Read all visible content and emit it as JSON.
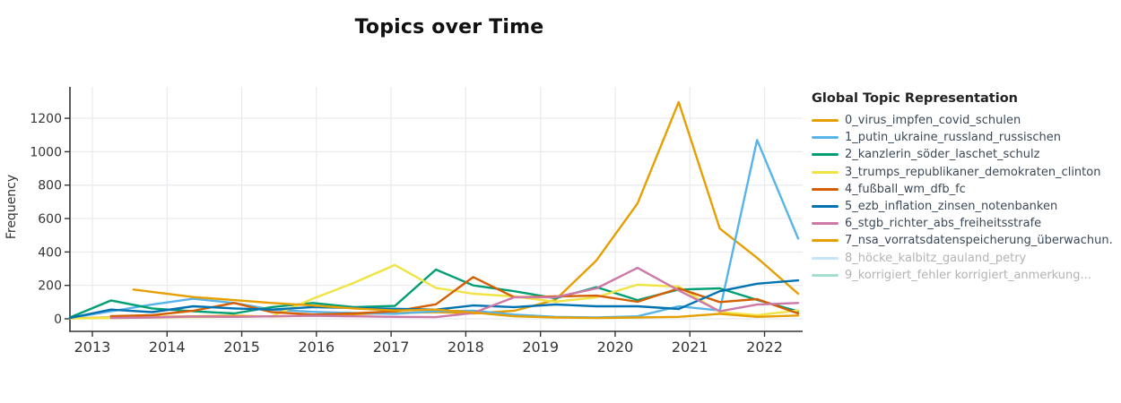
{
  "title": "Topics over Time",
  "chart_data": {
    "type": "line",
    "title": "Topics over Time",
    "xlabel": "",
    "ylabel": "Frequency",
    "legend_title": "Global Topic Representation",
    "legend_position": "right",
    "grid": true,
    "x_ticks": [
      2013,
      2014,
      2015,
      2016,
      2017,
      2018,
      2019,
      2020,
      2021,
      2022
    ],
    "y_ticks": [
      0,
      200,
      400,
      600,
      800,
      1000,
      1200
    ],
    "xlim": [
      2012.7,
      2022.51
    ],
    "ylim": [
      -75,
      1388
    ],
    "colors": {
      "accent_orange": "#E69F00",
      "light_blue": "#56B4E9",
      "teal_green": "#009E73",
      "yellow": "#F0E442",
      "vermillion": "#D55E00",
      "dark_blue": "#0072B2",
      "pink": "#CC79A7",
      "grid_gray": "#e8eaed",
      "axis_dark": "#333333",
      "dim_text": "#b3b3b3"
    },
    "series": [
      {
        "name": "0_virus_impfen_covid_schulen",
        "color": "#E69F00",
        "visible": true,
        "x": [
          2012.7,
          2013.25,
          2013.8,
          2014.35,
          2014.9,
          2015.4,
          2015.95,
          2016.5,
          2017.05,
          2017.6,
          2018.1,
          2018.65,
          2019.2,
          2019.75,
          2020.3,
          2020.85,
          2021.4,
          2021.9,
          2022.45
        ],
        "y": [
          3,
          8,
          12,
          15,
          18,
          14,
          20,
          28,
          35,
          40,
          32,
          48,
          113,
          350,
          690,
          1297,
          540,
          365,
          150
        ]
      },
      {
        "name": "1_putin_ukraine_russland_russischen",
        "color": "#56B4E9",
        "visible": true,
        "x": [
          2012.7,
          2013.25,
          2013.8,
          2014.35,
          2014.9,
          2015.4,
          2015.95,
          2016.5,
          2017.05,
          2017.6,
          2018.1,
          2018.65,
          2019.2,
          2019.75,
          2020.3,
          2020.85,
          2021.4,
          2021.9,
          2022.45
        ],
        "y": [
          5,
          45,
          85,
          120,
          95,
          55,
          42,
          35,
          30,
          45,
          48,
          25,
          12,
          8,
          15,
          75,
          50,
          1070,
          480
        ]
      },
      {
        "name": "2_kanzlerin_söder_laschet_schulz",
        "color": "#009E73",
        "visible": true,
        "x": [
          2012.7,
          2013.25,
          2013.8,
          2014.35,
          2014.9,
          2015.4,
          2015.95,
          2016.5,
          2017.05,
          2017.6,
          2018.1,
          2018.65,
          2019.2,
          2019.75,
          2020.3,
          2020.85,
          2021.4,
          2021.9,
          2022.45
        ],
        "y": [
          8,
          110,
          62,
          45,
          32,
          70,
          95,
          70,
          77,
          295,
          200,
          165,
          123,
          190,
          112,
          175,
          182,
          113,
          45
        ]
      },
      {
        "name": "3_trumps_republikaner_demokraten_clinton",
        "color": "#F0E442",
        "visible": true,
        "x": [
          2012.7,
          2013.25,
          2013.8,
          2014.35,
          2014.9,
          2015.4,
          2015.95,
          2016.5,
          2017.05,
          2017.6,
          2018.1,
          2018.65,
          2019.2,
          2019.75,
          2020.3,
          2020.85,
          2021.4,
          2021.9,
          2022.45
        ],
        "y": [
          2,
          5,
          8,
          10,
          12,
          15,
          120,
          215,
          322,
          185,
          150,
          134,
          102,
          129,
          204,
          193,
          40,
          22,
          50
        ]
      },
      {
        "name": "4_fußball_wm_dfb_fc",
        "color": "#D55E00",
        "visible": true,
        "x": [
          2013.25,
          2013.8,
          2014.35,
          2014.9,
          2015.4,
          2015.95,
          2016.5,
          2017.05,
          2017.6,
          2018.1,
          2018.65,
          2019.2,
          2019.75,
          2020.3,
          2020.85,
          2021.4,
          2021.9,
          2022.45
        ],
        "y": [
          16,
          22,
          48,
          95,
          40,
          26,
          32,
          45,
          87,
          250,
          129,
          134,
          139,
          102,
          182,
          100,
          118,
          32
        ]
      },
      {
        "name": "5_ezb_inflation_zinsen_notenbanken",
        "color": "#0072B2",
        "visible": true,
        "x": [
          2012.7,
          2013.25,
          2013.8,
          2014.35,
          2014.9,
          2015.4,
          2015.95,
          2016.5,
          2017.05,
          2017.6,
          2018.1,
          2018.65,
          2019.2,
          2019.75,
          2020.3,
          2020.85,
          2021.4,
          2021.9,
          2022.45
        ],
        "y": [
          5,
          55,
          40,
          75,
          62,
          55,
          70,
          65,
          60,
          55,
          80,
          70,
          86,
          75,
          75,
          59,
          165,
          210,
          230
        ]
      },
      {
        "name": "6_stgb_richter_abs_freiheitsstrafe",
        "color": "#CC79A7",
        "visible": true,
        "x": [
          2013.25,
          2013.8,
          2014.35,
          2014.9,
          2015.4,
          2015.95,
          2016.5,
          2017.05,
          2017.6,
          2018.1,
          2018.65,
          2019.2,
          2019.75,
          2020.3,
          2020.85,
          2021.4,
          2021.9,
          2022.45
        ],
        "y": [
          5,
          8,
          14,
          12,
          15,
          18,
          15,
          12,
          10,
          35,
          129,
          129,
          182,
          305,
          170,
          45,
          85,
          95
        ]
      },
      {
        "name": "7_nsa_vorratsdatenspeicherung_überwachun.",
        "color": "#E69F00",
        "visible": true,
        "x": [
          2013.55,
          2014.35,
          2014.9,
          2015.4,
          2015.95,
          2016.5,
          2017.05,
          2017.6,
          2018.1,
          2018.65,
          2019.2,
          2019.75,
          2020.3,
          2020.85,
          2021.4,
          2021.9,
          2022.45
        ],
        "y": [
          175,
          130,
          112,
          95,
          80,
          62,
          50,
          55,
          38,
          15,
          8,
          5,
          8,
          12,
          30,
          12,
          20
        ]
      },
      {
        "name": "8_höcke_kalbitz_gauland_petry",
        "color": "#56B4E9",
        "visible": false,
        "x": [],
        "y": []
      },
      {
        "name": "9_korrigiert_fehler korrigiert_anmerkung...",
        "color": "#009E73",
        "visible": false,
        "x": [],
        "y": []
      }
    ]
  }
}
